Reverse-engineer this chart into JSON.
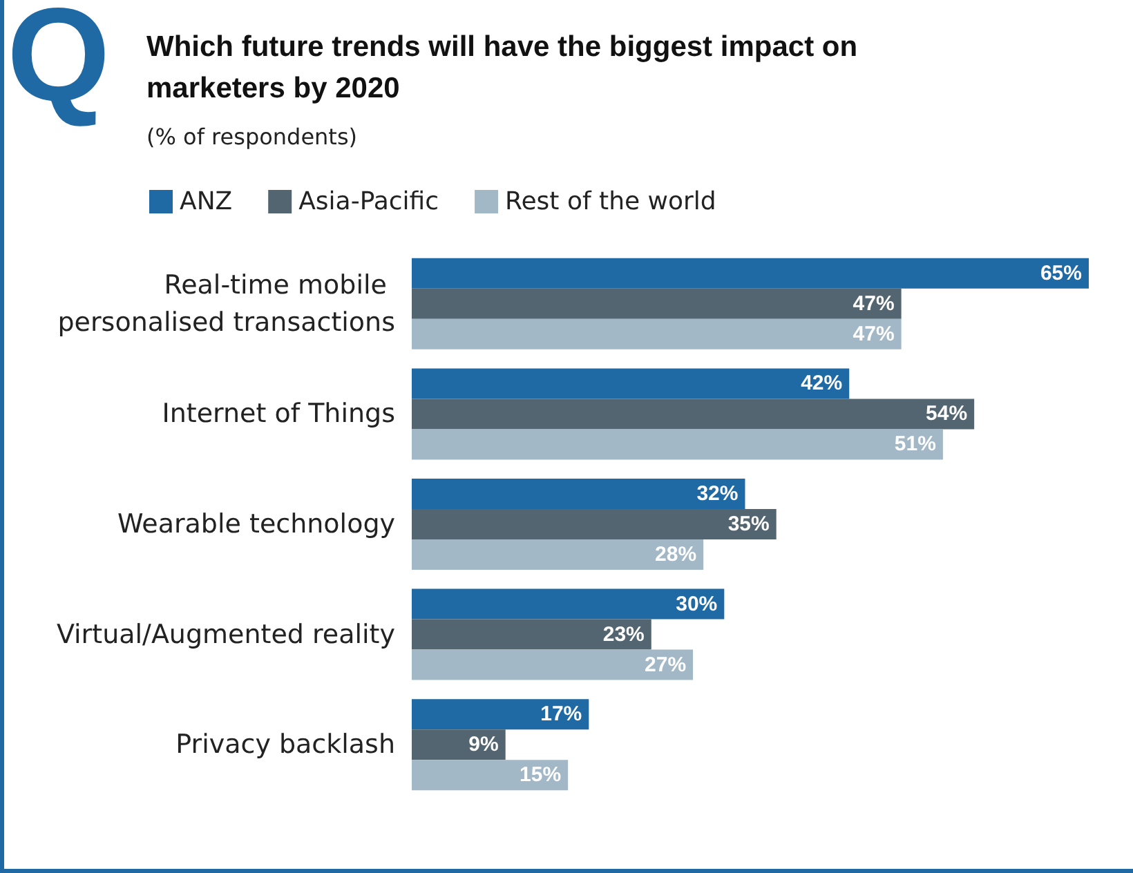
{
  "chart_data": {
    "type": "bar",
    "orientation": "horizontal",
    "title": "Which future trends will have the biggest impact on marketers by 2020",
    "subtitle": "(% of respondents)",
    "annotations": [
      "Q"
    ],
    "categories": [
      "Real-time mobile personalised transactions",
      "Internet of Things",
      "Wearable technology",
      "Virtual/Augmented reality",
      "Privacy backlash"
    ],
    "series": [
      {
        "name": "ANZ",
        "color": "#1f6aa5",
        "values": [
          65,
          42,
          32,
          30,
          17
        ],
        "value_labels": [
          "65%",
          "42%",
          "32%",
          "30%",
          "17%"
        ]
      },
      {
        "name": "Asia-Pacific",
        "color": "#536570",
        "values": [
          47,
          54,
          35,
          23,
          9
        ],
        "value_labels": [
          "47%",
          "54%",
          "35%",
          "23%",
          "9%"
        ]
      },
      {
        "name": "Rest of the world",
        "color": "#a3b8c6",
        "values": [
          47,
          51,
          28,
          27,
          15
        ],
        "value_labels": [
          "47%",
          "51%",
          "28%",
          "27%",
          "15%"
        ]
      }
    ],
    "legend": "top left"
  }
}
